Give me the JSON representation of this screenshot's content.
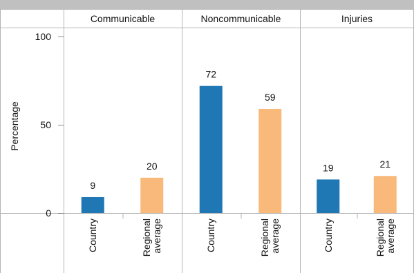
{
  "chart_data": {
    "type": "bar",
    "ylabel": "Percentage",
    "ylim": [
      0,
      100
    ],
    "yticks": [
      0,
      50,
      100
    ],
    "categories": [
      "Country",
      "Regional average"
    ],
    "category_labels": [
      [
        "Country"
      ],
      [
        "Regional",
        "average"
      ]
    ],
    "groups": [
      {
        "name": "Communicable",
        "values": [
          9,
          20
        ]
      },
      {
        "name": "Noncommunicable",
        "values": [
          72,
          59
        ]
      },
      {
        "name": "Injuries",
        "values": [
          19,
          21
        ]
      }
    ],
    "colors": {
      "Country": "#1f77b4",
      "Regional average": "#f8b97a"
    }
  }
}
